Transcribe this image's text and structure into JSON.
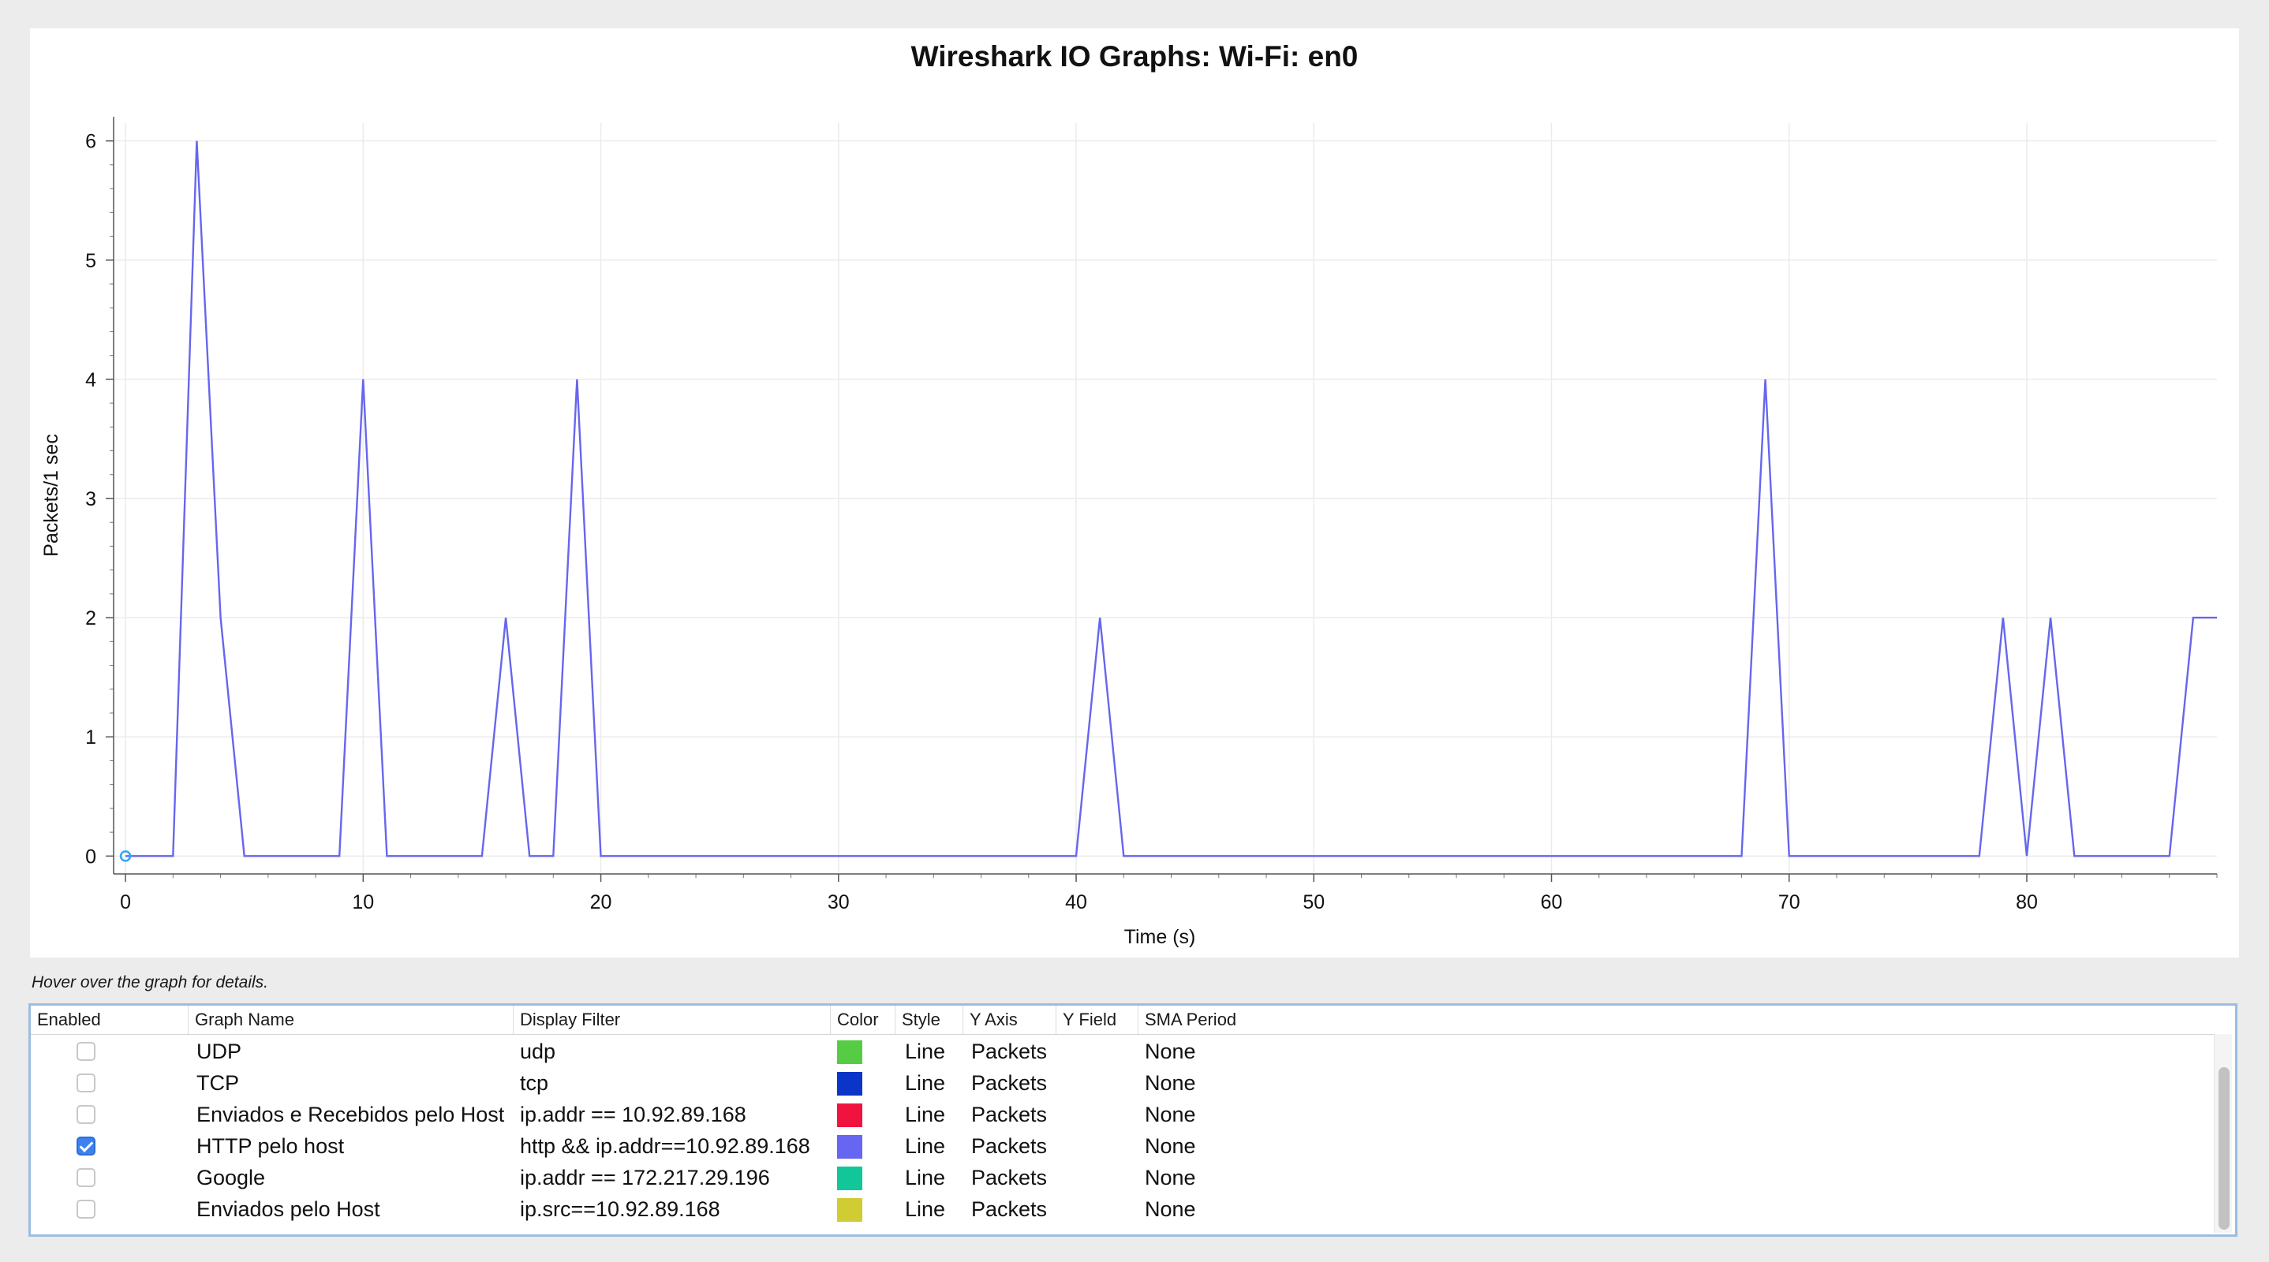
{
  "chart_data": {
    "type": "line",
    "title": "Wireshark IO Graphs: Wi-Fi: en0",
    "xlabel": "Time (s)",
    "ylabel": "Packets/1 sec",
    "xlim": [
      -0.5,
      88
    ],
    "ylim": [
      -0.15,
      6.15
    ],
    "x_ticks": [
      0,
      10,
      20,
      30,
      40,
      50,
      60,
      70,
      80
    ],
    "y_ticks": [
      0,
      1,
      2,
      3,
      4,
      5,
      6
    ],
    "grid": true,
    "series": [
      {
        "color": "#6666ee",
        "x": [
          0,
          1,
          2,
          3,
          4,
          5,
          6,
          7,
          8,
          9,
          10,
          11,
          12,
          13,
          14,
          15,
          16,
          17,
          18,
          19,
          20,
          21,
          22,
          23,
          24,
          25,
          26,
          27,
          28,
          29,
          30,
          31,
          32,
          33,
          34,
          35,
          36,
          37,
          38,
          39,
          40,
          41,
          42,
          43,
          44,
          45,
          46,
          47,
          48,
          49,
          50,
          51,
          52,
          53,
          54,
          55,
          56,
          57,
          58,
          59,
          60,
          61,
          62,
          63,
          64,
          65,
          66,
          67,
          68,
          69,
          70,
          71,
          72,
          73,
          74,
          75,
          76,
          77,
          78,
          79,
          80,
          81,
          82,
          83,
          84,
          85,
          86,
          87,
          88
        ],
        "y": [
          0,
          0,
          0,
          6,
          2,
          0,
          0,
          0,
          0,
          0,
          4,
          0,
          0,
          0,
          0,
          0,
          2,
          0,
          0,
          4,
          0,
          0,
          0,
          0,
          0,
          0,
          0,
          0,
          0,
          0,
          0,
          0,
          0,
          0,
          0,
          0,
          0,
          0,
          0,
          0,
          0,
          2,
          0,
          0,
          0,
          0,
          0,
          0,
          0,
          0,
          0,
          0,
          0,
          0,
          0,
          0,
          0,
          0,
          0,
          0,
          0,
          0,
          0,
          0,
          0,
          0,
          0,
          0,
          0,
          4,
          0,
          0,
          0,
          0,
          0,
          0,
          0,
          0,
          0,
          2,
          0,
          2,
          0,
          0,
          0,
          0,
          0,
          2,
          2
        ]
      }
    ]
  },
  "hint": "Hover over the graph for details.",
  "table": {
    "headers": [
      "Enabled",
      "Graph Name",
      "Display Filter",
      "Color",
      "Style",
      "Y Axis",
      "Y Field",
      "SMA Period"
    ],
    "rows": [
      {
        "enabled": false,
        "name": "UDP",
        "filter": "udp",
        "color": "#55cc44",
        "style": "Line",
        "y_axis": "Packets",
        "y_field": "",
        "sma": "None"
      },
      {
        "enabled": false,
        "name": "TCP",
        "filter": "tcp",
        "color": "#0a35c8",
        "style": "Line",
        "y_axis": "Packets",
        "y_field": "",
        "sma": "None"
      },
      {
        "enabled": false,
        "name": "Enviados e Recebidos pelo Host",
        "filter": "ip.addr == 10.92.89.168",
        "color": "#f0133f",
        "style": "Line",
        "y_axis": "Packets",
        "y_field": "",
        "sma": "None"
      },
      {
        "enabled": true,
        "name": "HTTP pelo host",
        "filter": "http && ip.addr==10.92.89.168",
        "color": "#6666f2",
        "style": "Line",
        "y_axis": "Packets",
        "y_field": "",
        "sma": "None"
      },
      {
        "enabled": false,
        "name": "Google",
        "filter": "ip.addr == 172.217.29.196",
        "color": "#11c699",
        "style": "Line",
        "y_axis": "Packets",
        "y_field": "",
        "sma": "None"
      },
      {
        "enabled": false,
        "name": "Enviados pelo Host",
        "filter": "ip.src==10.92.89.168",
        "color": "#d0cc33",
        "style": "Line",
        "y_axis": "Packets",
        "y_field": "",
        "sma": "None"
      }
    ]
  }
}
